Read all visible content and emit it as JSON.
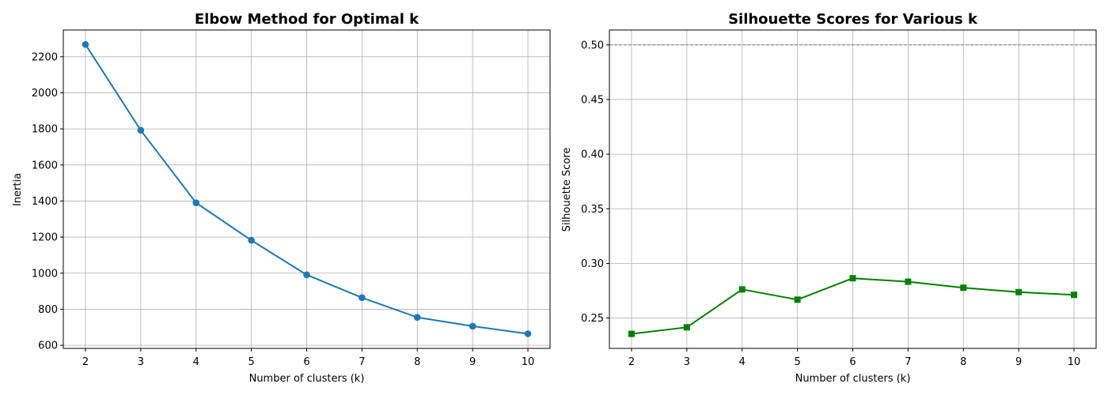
{
  "colors": {
    "elbow": "#1f77b4",
    "silhouette": "#008000",
    "reference": "#808080"
  },
  "chart_data": [
    {
      "type": "line",
      "title": "Elbow Method for Optimal k",
      "xlabel": "Number of clusters (k)",
      "ylabel": "Inertia",
      "x": [
        2,
        3,
        4,
        5,
        6,
        7,
        8,
        9,
        10
      ],
      "series": [
        {
          "name": "Inertia",
          "marker": "circle",
          "values": [
            2268,
            1792,
            1390,
            1182,
            991,
            864,
            755,
            706,
            664
          ]
        }
      ],
      "xlim": [
        1.6,
        10.4
      ],
      "ylim": [
        583,
        2348
      ],
      "xticks": [
        2,
        3,
        4,
        5,
        6,
        7,
        8,
        9,
        10
      ],
      "yticks": [
        600,
        800,
        1000,
        1200,
        1400,
        1600,
        1800,
        2000,
        2200
      ],
      "ytick_labels": [
        "600",
        "800",
        "1000",
        "1200",
        "1400",
        "1600",
        "1800",
        "2000",
        "2200"
      ],
      "grid": true
    },
    {
      "type": "line",
      "title": "Silhouette Scores for Various k",
      "xlabel": "Number of clusters (k)",
      "ylabel": "Silhouette Score",
      "x": [
        2,
        3,
        4,
        5,
        6,
        7,
        8,
        9,
        10
      ],
      "series": [
        {
          "name": "Silhouette Score",
          "marker": "square",
          "values": [
            0.2355,
            0.2415,
            0.2762,
            0.2668,
            0.2864,
            0.2832,
            0.2777,
            0.2737,
            0.2712
          ]
        }
      ],
      "reference_line": {
        "y": 0.5,
        "style": "dashed"
      },
      "xlim": [
        1.6,
        10.4
      ],
      "ylim": [
        0.2222,
        0.5136
      ],
      "xticks": [
        2,
        3,
        4,
        5,
        6,
        7,
        8,
        9,
        10
      ],
      "yticks": [
        0.25,
        0.3,
        0.35,
        0.4,
        0.45,
        0.5
      ],
      "ytick_labels": [
        "0.25",
        "0.30",
        "0.35",
        "0.40",
        "0.45",
        "0.50"
      ],
      "grid": true
    }
  ]
}
